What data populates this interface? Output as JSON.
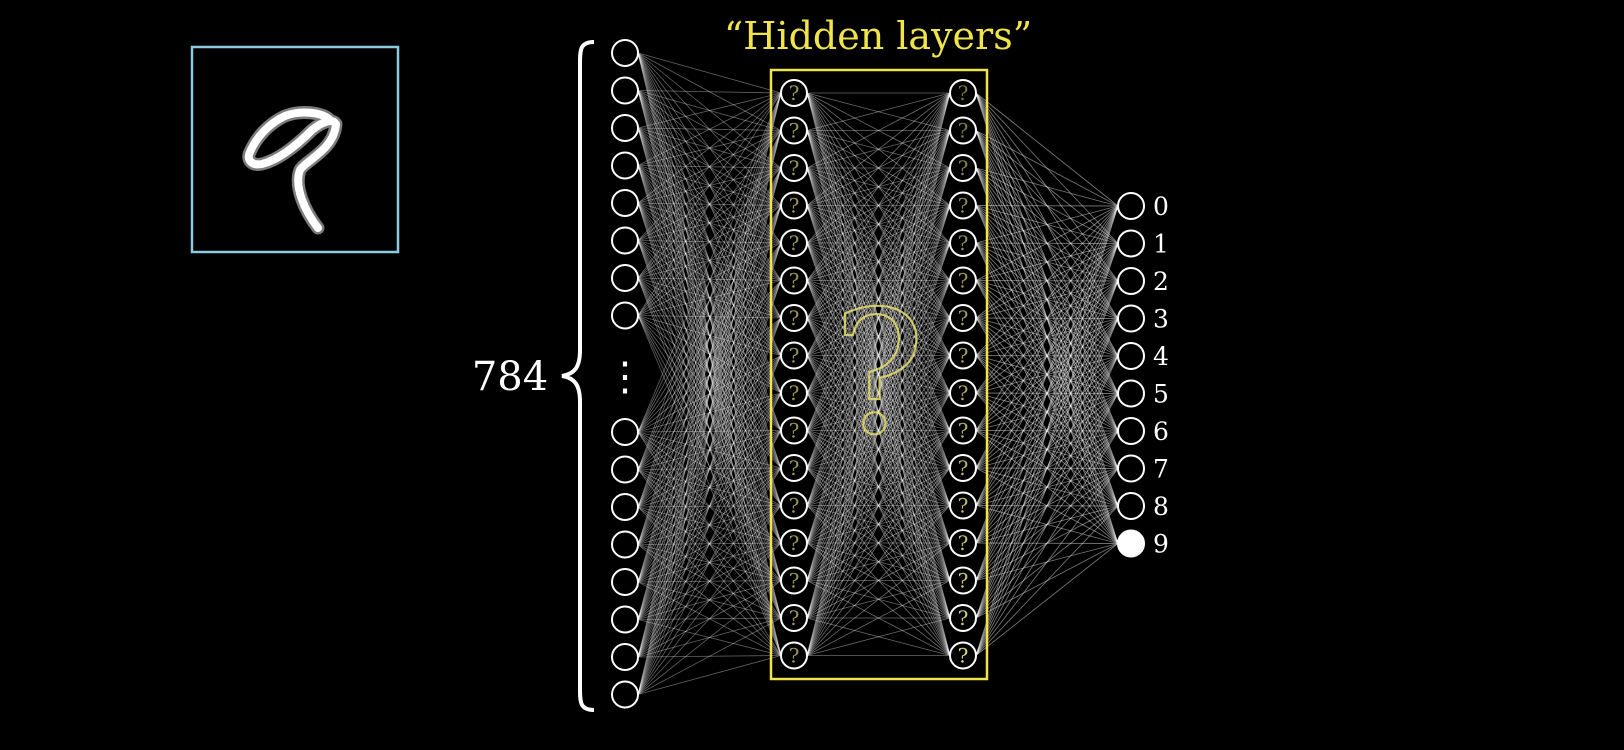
{
  "title": "“Hidden layers”",
  "input_count_label": "784",
  "hidden_node_mark": "?",
  "center_mark": "?",
  "input_layer": {
    "visible_nodes_top": 8,
    "visible_nodes_bottom": 8,
    "ellipsis": "⋮"
  },
  "hidden_layers": [
    {
      "nodes": 16
    },
    {
      "nodes": 16
    }
  ],
  "output_layer": {
    "labels": [
      "0",
      "1",
      "2",
      "3",
      "4",
      "5",
      "6",
      "7",
      "8",
      "9"
    ],
    "active_index": 9
  },
  "digit_image": {
    "depicted_digit": "9",
    "border_color": "#8ec9e2"
  },
  "colors": {
    "background": "#000000",
    "accent_yellow": "#f0e44a",
    "node_stroke": "#ffffff",
    "edge": "#ffffff",
    "hidden_mark": "#d9d37a",
    "bracket": "#ffffff"
  }
}
